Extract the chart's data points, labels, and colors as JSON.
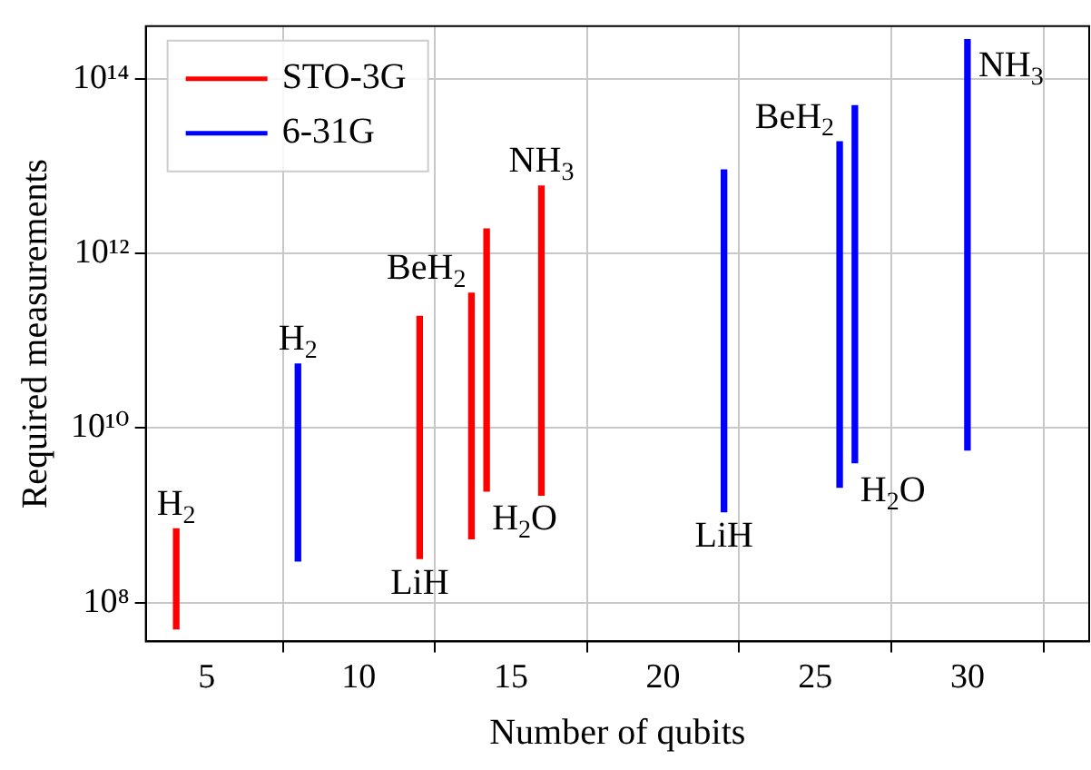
{
  "chart_data": {
    "type": "bar",
    "xlabel": "Number of qubits",
    "ylabel": "Required measurements",
    "series": [
      {
        "name": "STO-3G",
        "color": "#ff0000",
        "x": [
          4,
          12,
          13.7,
          14.2,
          16
        ],
        "base": [
          50000000.0,
          320000000.0,
          540000000.0,
          1900000000.0,
          1700000000.0
        ],
        "values": [
          650000000.0,
          189680000000.0,
          349460000000.0,
          1898100000000.0,
          5898300000000.0
        ]
      },
      {
        "name": "6-31G",
        "color": "#0000ff",
        "x": [
          8,
          22,
          25.8,
          26.3,
          30
        ],
        "base": [
          300000000.0,
          1100000000.0,
          2100000000.0,
          4000000000.0,
          5600000000.0
        ],
        "values": [
          53700000000.0,
          8998900000000.0,
          18997900000000.0,
          48996000000000.0,
          279994400000000.0
        ]
      }
    ],
    "annotations": [
      {
        "text": "H$_{2}$",
        "x": 4,
        "y": 700000000.0
      },
      {
        "text": "LiH",
        "x": 12,
        "y": 320000000.0
      },
      {
        "text": "BeH$_{2}$",
        "x": 13.7,
        "y": 350000000000.0
      },
      {
        "text": "H$_{2}$O",
        "x": 14.2,
        "y": 1900000000.0
      },
      {
        "text": "NH$_{3}$",
        "x": 16,
        "y": 5900000000000.0
      },
      {
        "text": "H$_{2}$",
        "x": 8,
        "y": 54000000000.0
      },
      {
        "text": "LiH",
        "x": 22,
        "y": 1100000000.0
      },
      {
        "text": "BeH$_{2}$",
        "x": 25.8,
        "y": 19000000000000.0
      },
      {
        "text": "H$_{2}$O",
        "x": 26.3,
        "y": 4000000000.0
      },
      {
        "text": "NH$_{3}$",
        "x": 30,
        "y": 280000000000000.0
      }
    ],
    "xlim": [
      3,
      34
    ],
    "xticks": [
      5,
      10,
      15,
      20,
      25,
      30
    ],
    "ylim": [
      36000000.0,
      400000000000000.0
    ],
    "yticks": [
      {
        "value": 100000000.0,
        "label": "10⁸"
      },
      {
        "value": 10000000000.0,
        "label": "10¹⁰"
      },
      {
        "value": 1000000000000.0,
        "label": "10¹²"
      },
      {
        "value": 100000000000000.0,
        "label": "10¹⁴"
      }
    ],
    "log": "y",
    "grid": true,
    "legend": "top left"
  }
}
